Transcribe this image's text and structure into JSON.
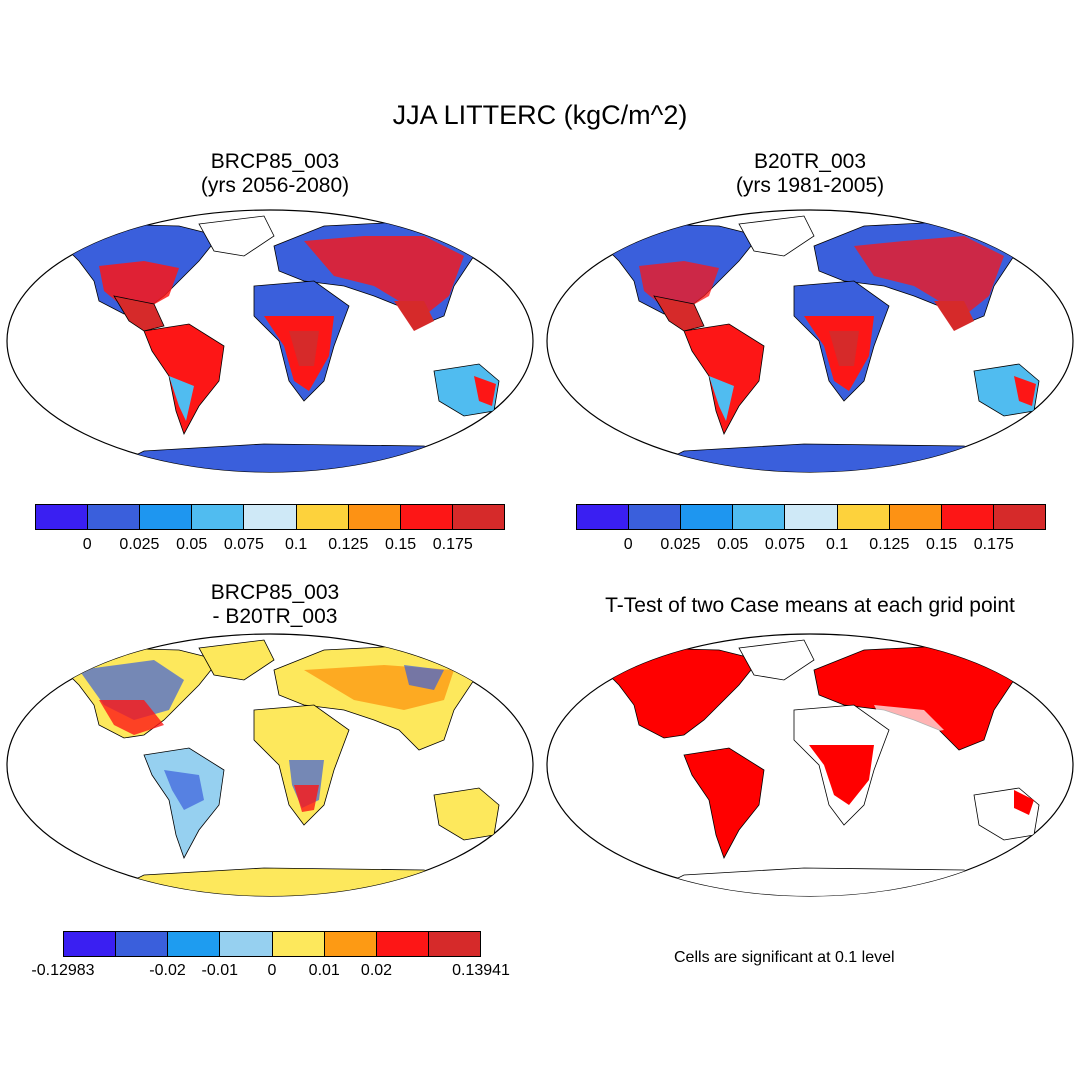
{
  "figure_title": "JJA LITTERC (kgC/m^2)",
  "panels": [
    {
      "id": "top-left",
      "title_line1": "BRCP85_003",
      "title_line2": "(yrs 2056-2080)"
    },
    {
      "id": "top-right",
      "title_line1": "B20TR_003",
      "title_line2": "(yrs 1981-2005)"
    },
    {
      "id": "bottom-left",
      "title_line1": "BRCP85_003",
      "title_line2": "- B20TR_003"
    },
    {
      "id": "bottom-right",
      "title_line1": "T-Test of two Case means at each grid point"
    }
  ],
  "colorbar_abs": {
    "colors": [
      "#3a1ff2",
      "#3a5fdc",
      "#1e96f0",
      "#50bcf0",
      "#cfe9f7",
      "#fdd23c",
      "#fd9214",
      "#fd1616",
      "#d62a2a"
    ],
    "labels": [
      "0",
      "0.025",
      "0.05",
      "0.075",
      "0.1",
      "0.125",
      "0.15",
      "0.175"
    ]
  },
  "colorbar_diff": {
    "colors": [
      "#3a1ff2",
      "#3a5fdc",
      "#1e9cf0",
      "#96d0f0",
      "#fde85c",
      "#fd9a14",
      "#fd1616",
      "#d62a2a"
    ],
    "labels": [
      "-0.12983",
      "-0.02",
      "-0.01",
      "0",
      "0.01",
      "0.02",
      "0.13941"
    ]
  },
  "significance_note": "Cells are significant at 0.1 level",
  "colors": {
    "significant": "#ff0000",
    "land_outline": "#000000",
    "ocean": "#ffffff"
  }
}
